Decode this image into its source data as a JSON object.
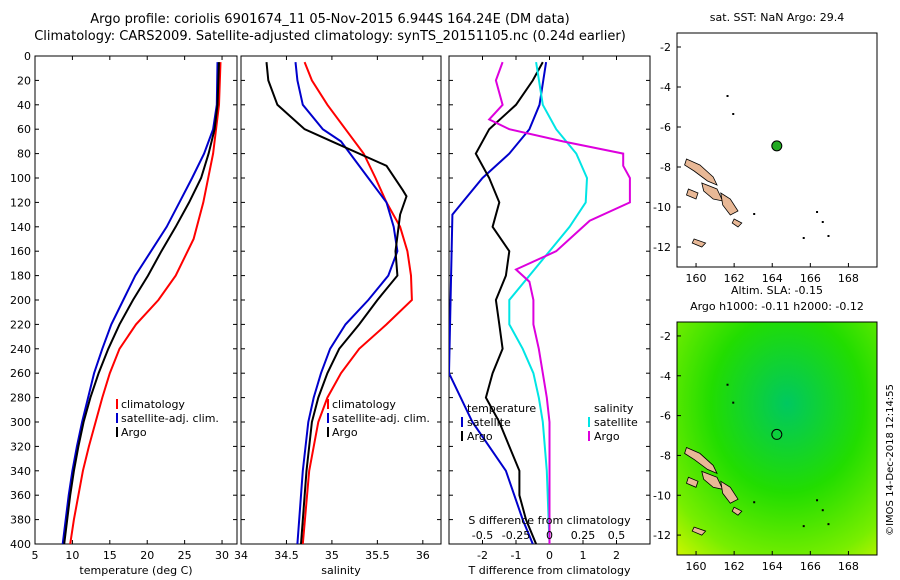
{
  "titles": {
    "line1": "Argo profile: coriolis 6901674_11 05-Nov-2015 6.944S 164.24E (DM data)",
    "line2": "Climatology: CARS2009. Satellite-adjusted climatology: synTS_20151105.nc (0.24d earlier)"
  },
  "watermark": "©IMOS 14-Dec-2018 12:14:55",
  "colors": {
    "climatology": "#ff0000",
    "satellite": "#0000cc",
    "argo": "#000000",
    "satellite_diff_s": "#00e5e5",
    "argo_diff_s": "#dd00dd",
    "land": "#e8b896",
    "float_marker": "#22aa22"
  },
  "chart_data": [
    {
      "id": "temperature",
      "type": "line",
      "xlabel": "temperature (deg C)",
      "xlim": [
        5,
        32
      ],
      "xticks": [
        5,
        10,
        15,
        20,
        25,
        30
      ],
      "ylim": [
        0,
        400
      ],
      "yticks": [
        0,
        20,
        40,
        60,
        80,
        100,
        120,
        140,
        160,
        180,
        200,
        220,
        240,
        260,
        280,
        300,
        320,
        340,
        360,
        380,
        400
      ],
      "legend": [
        "climatology",
        "satellite-adj. clim.",
        "Argo"
      ],
      "series": [
        {
          "name": "climatology",
          "color": "#ff0000",
          "depth": [
            5,
            40,
            80,
            120,
            150,
            180,
            200,
            220,
            240,
            260,
            280,
            300,
            320,
            340,
            360,
            380,
            400
          ],
          "values": [
            29.8,
            29.6,
            28.8,
            27.5,
            26.2,
            23.8,
            21.5,
            18.5,
            16.3,
            15,
            14,
            13.1,
            12.2,
            11.4,
            10.8,
            10.2,
            9.7
          ]
        },
        {
          "name": "satellite-adj. clim.",
          "color": "#0000cc",
          "depth": [
            5,
            40,
            60,
            80,
            100,
            120,
            140,
            160,
            180,
            200,
            220,
            240,
            260,
            280,
            300,
            320,
            340,
            360,
            380,
            400
          ],
          "values": [
            29.4,
            29.3,
            28.8,
            27.6,
            26,
            24.3,
            22.6,
            20.5,
            18.4,
            16.8,
            15.2,
            14,
            12.9,
            12.1,
            11.3,
            10.6,
            10,
            9.5,
            9.1,
            8.7
          ]
        },
        {
          "name": "Argo",
          "color": "#000000",
          "depth": [
            5,
            40,
            60,
            80,
            100,
            120,
            140,
            160,
            180,
            200,
            220,
            240,
            260,
            280,
            300,
            320,
            340,
            360,
            380,
            400
          ],
          "values": [
            29.6,
            29.4,
            29,
            28.2,
            27.2,
            25.6,
            23.8,
            21.9,
            20.1,
            18.1,
            16.3,
            14.8,
            13.5,
            12.4,
            11.5,
            10.8,
            10.2,
            9.7,
            9.3,
            8.9
          ]
        }
      ]
    },
    {
      "id": "salinity",
      "type": "line",
      "xlabel": "salinity",
      "xlim": [
        34,
        36.2
      ],
      "xticks": [
        34,
        34.5,
        35,
        35.5,
        36
      ],
      "xticklabels": [
        "34",
        "34.5",
        "35",
        "35.5",
        "36"
      ],
      "ylim": [
        0,
        400
      ],
      "legend": [
        "climatology",
        "satellite-adj. clim.",
        "Argo"
      ],
      "series": [
        {
          "name": "climatology",
          "color": "#ff0000",
          "depth": [
            5,
            20,
            40,
            60,
            80,
            100,
            120,
            140,
            160,
            180,
            200,
            220,
            240,
            260,
            280,
            300,
            340,
            400
          ],
          "values": [
            34.7,
            34.78,
            34.95,
            35.15,
            35.35,
            35.48,
            35.6,
            35.75,
            35.83,
            35.87,
            35.88,
            35.6,
            35.3,
            35.1,
            34.95,
            34.85,
            34.75,
            34.68
          ]
        },
        {
          "name": "satellite-adj. clim.",
          "color": "#0000cc",
          "depth": [
            5,
            20,
            40,
            60,
            70,
            100,
            120,
            140,
            160,
            180,
            200,
            220,
            240,
            260,
            280,
            300,
            340,
            400
          ],
          "values": [
            34.6,
            34.62,
            34.68,
            34.9,
            35.1,
            35.4,
            35.6,
            35.68,
            35.72,
            35.62,
            35.4,
            35.15,
            34.98,
            34.88,
            34.8,
            34.74,
            34.68,
            34.62
          ]
        },
        {
          "name": "Argo",
          "color": "#000000",
          "depth": [
            5,
            20,
            40,
            50,
            60,
            70,
            90,
            110,
            115,
            130,
            160,
            180,
            200,
            220,
            240,
            260,
            280,
            300,
            340,
            400
          ],
          "values": [
            34.28,
            34.3,
            34.4,
            34.55,
            34.7,
            35,
            35.6,
            35.78,
            35.82,
            35.75,
            35.7,
            35.72,
            35.5,
            35.3,
            35.08,
            34.95,
            34.85,
            34.78,
            34.72,
            34.66
          ]
        }
      ]
    },
    {
      "id": "differences",
      "type": "line",
      "xlabel": "T difference from climatology",
      "xlim": [
        -3,
        3
      ],
      "xticks": [
        -2,
        -1,
        0,
        1,
        2
      ],
      "secondary_xlabel": "S difference from climatology",
      "secondary_xlim": [
        -0.75,
        0.75
      ],
      "secondary_xticks": [
        -0.5,
        -0.25,
        0,
        0.25,
        0.5
      ],
      "secondary_xticklabels": [
        "-0.5",
        "-0.25",
        "0",
        "0.25",
        "0.5"
      ],
      "ylim": [
        0,
        400
      ],
      "legend_left_title": "temperature",
      "legend_left": [
        "satellite",
        "Argo"
      ],
      "legend_right_title": "salinity",
      "legend_right": [
        "satellite",
        "Argo"
      ],
      "series": [
        {
          "name": "T satellite",
          "color": "#0000cc",
          "depth": [
            5,
            40,
            60,
            80,
            100,
            120,
            130,
            260,
            300,
            340,
            380,
            400
          ],
          "values": [
            -0.1,
            -0.3,
            -0.6,
            -1.2,
            -2,
            -2.6,
            -2.9,
            -3,
            -2.3,
            -1.3,
            -0.8,
            -0.5
          ]
        },
        {
          "name": "T Argo",
          "color": "#000000",
          "depth": [
            5,
            20,
            40,
            60,
            80,
            100,
            120,
            140,
            160,
            180,
            200,
            220,
            240,
            260,
            280,
            300,
            320,
            340,
            360,
            380,
            400
          ],
          "values": [
            -0.2,
            -0.5,
            -1,
            -1.8,
            -2.2,
            -1.8,
            -1.5,
            -1.7,
            -1.2,
            -1.3,
            -1.6,
            -1.5,
            -1.4,
            -1.7,
            -1.9,
            -1.5,
            -1.2,
            -0.9,
            -0.9,
            -0.7,
            -0.4
          ]
        },
        {
          "name": "S satellite",
          "color": "#00e5e5",
          "depth": [
            5,
            40,
            60,
            80,
            100,
            120,
            140,
            160,
            180,
            200,
            220,
            240,
            260,
            280,
            300,
            340,
            400
          ],
          "values": [
            -0.1,
            -0.05,
            0.05,
            0.2,
            0.28,
            0.27,
            0.15,
            0,
            -0.15,
            -0.3,
            -0.3,
            -0.2,
            -0.12,
            -0.08,
            -0.05,
            -0.02,
            0
          ]
        },
        {
          "name": "S Argo",
          "color": "#dd00dd",
          "depth": [
            5,
            20,
            40,
            52,
            60,
            70,
            80,
            90,
            100,
            120,
            135,
            150,
            160,
            175,
            185,
            200,
            220,
            240,
            260,
            280,
            300,
            340,
            400
          ],
          "values": [
            -0.35,
            -0.4,
            -0.35,
            -0.45,
            -0.3,
            0.1,
            0.55,
            0.55,
            0.6,
            0.6,
            0.3,
            0.15,
            0.05,
            -0.25,
            -0.15,
            -0.12,
            -0.12,
            -0.08,
            -0.05,
            -0.02,
            0,
            0,
            0
          ]
        }
      ]
    },
    {
      "id": "sst_map",
      "type": "map",
      "title": "sat. SST: NaN  Argo: 29.4",
      "xlim": [
        159,
        169.5
      ],
      "xticks": [
        160,
        162,
        164,
        166,
        168
      ],
      "ylim": [
        -13,
        -1.3
      ],
      "yticks": [
        -2,
        -4,
        -6,
        -8,
        -10,
        -12
      ],
      "float_position": {
        "lon": 164.24,
        "lat": -6.944
      }
    },
    {
      "id": "sla_map",
      "type": "map",
      "title_line1": "Altim. SLA: -0.15",
      "title_line2": "Argo h1000: -0.11  h2000: -0.12",
      "xlim": [
        159,
        169.5
      ],
      "xticks": [
        160,
        162,
        164,
        166,
        168
      ],
      "ylim": [
        -13,
        -1.3
      ],
      "yticks": [
        -2,
        -4,
        -6,
        -8,
        -10,
        -12
      ],
      "float_position": {
        "lon": 164.24,
        "lat": -6.944
      }
    }
  ]
}
